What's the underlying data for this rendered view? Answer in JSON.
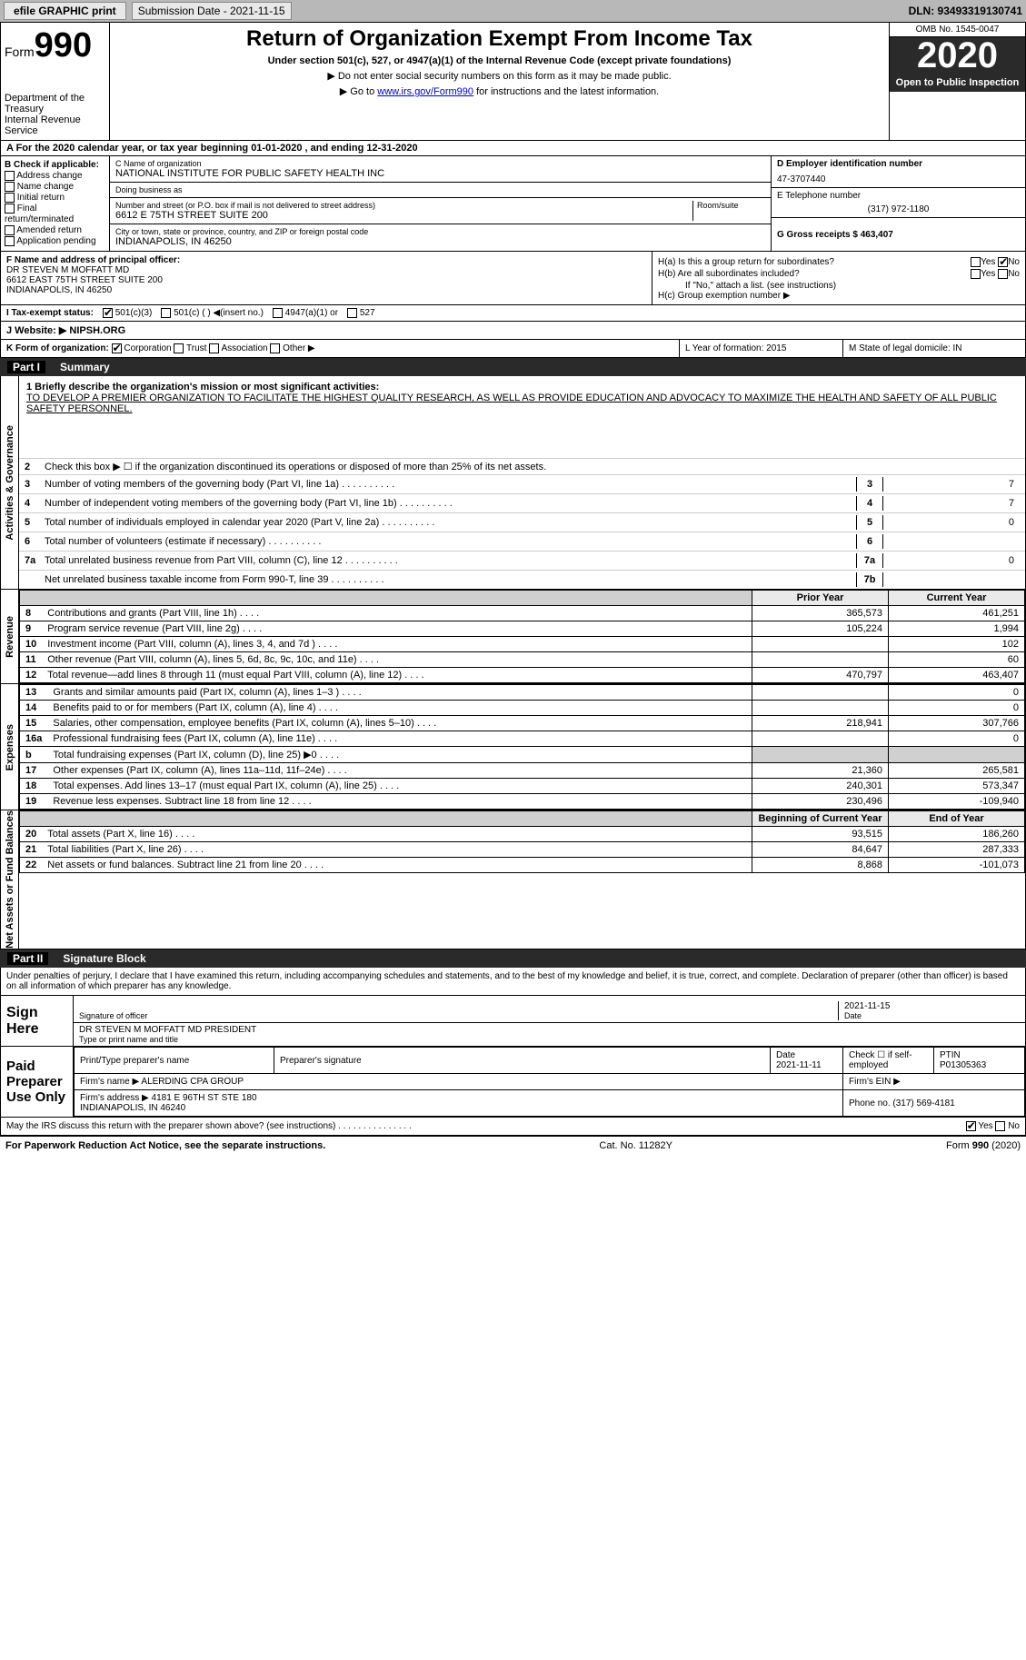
{
  "top": {
    "efile": "efile GRAPHIC print",
    "submission_label": "Submission Date - 2021-11-15",
    "dln": "DLN: 93493319130741"
  },
  "header": {
    "form": "Form",
    "form_num": "990",
    "dept": "Department of the Treasury\nInternal Revenue Service",
    "title": "Return of Organization Exempt From Income Tax",
    "subtitle": "Under section 501(c), 527, or 4947(a)(1) of the Internal Revenue Code (except private foundations)",
    "note1": "▶ Do not enter social security numbers on this form as it may be made public.",
    "note2_pre": "▶ Go to ",
    "note2_link": "www.irs.gov/Form990",
    "note2_post": " for instructions and the latest information.",
    "omb": "OMB No. 1545-0047",
    "year": "2020",
    "open": "Open to Public Inspection"
  },
  "row_a": "A For the 2020 calendar year, or tax year beginning 01-01-2020    , and ending 12-31-2020",
  "b": {
    "title": "B Check if applicable:",
    "items": [
      "Address change",
      "Name change",
      "Initial return",
      "Final return/terminated",
      "Amended return",
      "Application pending"
    ]
  },
  "c": {
    "name_label": "C Name of organization",
    "name": "NATIONAL INSTITUTE FOR PUBLIC SAFETY HEALTH INC",
    "dba_label": "Doing business as",
    "dba": "",
    "addr_label": "Number and street (or P.O. box if mail is not delivered to street address)",
    "room_label": "Room/suite",
    "addr": "6612 E 75TH STREET SUITE 200",
    "city_label": "City or town, state or province, country, and ZIP or foreign postal code",
    "city": "INDIANAPOLIS, IN  46250"
  },
  "d": {
    "ein_label": "D Employer identification number",
    "ein": "47-3707440",
    "phone_label": "E Telephone number",
    "phone": "(317) 972-1180",
    "gross_label": "G Gross receipts $ 463,407"
  },
  "f": {
    "label": "F  Name and address of principal officer:",
    "name": "DR STEVEN M MOFFATT MD",
    "addr": "6612 EAST 75TH STREET SUITE 200\nINDIANAPOLIS, IN  46250"
  },
  "h": {
    "ha": "H(a)  Is this a group return for subordinates?",
    "hb": "H(b)  Are all subordinates included?",
    "hb_note": "If \"No,\" attach a list. (see instructions)",
    "hc": "H(c)  Group exemption number ▶"
  },
  "i": {
    "label": "I    Tax-exempt status:",
    "c3": "501(c)(3)",
    "c": "501(c) (  ) ◀(insert no.)",
    "a1": "4947(a)(1) or",
    "s527": "527"
  },
  "j": {
    "label": "J   Website: ▶",
    "val": "NIPSH.ORG"
  },
  "k": {
    "label": "K Form of organization:",
    "corp": "Corporation",
    "trust": "Trust",
    "assoc": "Association",
    "other": "Other ▶",
    "l": "L Year of formation: 2015",
    "m": "M State of legal domicile: IN"
  },
  "part1": {
    "title": "Part I",
    "name": "Summary",
    "mission_label": "1  Briefly describe the organization's mission or most significant activities:",
    "mission": "TO DEVELOP A PREMIER ORGANIZATION TO FACILITATE THE HIGHEST QUALITY RESEARCH, AS WELL AS PROVIDE EDUCATION AND ADVOCACY TO MAXIMIZE THE HEALTH AND SAFETY OF ALL PUBLIC SAFETY PERSONNEL.",
    "line2": "Check this box ▶ ☐  if the organization discontinued its operations or disposed of more than 25% of its net assets.",
    "gov_lines": [
      {
        "n": "3",
        "t": "Number of voting members of the governing body (Part VI, line 1a)",
        "box": "3",
        "v": "7"
      },
      {
        "n": "4",
        "t": "Number of independent voting members of the governing body (Part VI, line 1b)",
        "box": "4",
        "v": "7"
      },
      {
        "n": "5",
        "t": "Total number of individuals employed in calendar year 2020 (Part V, line 2a)",
        "box": "5",
        "v": "0"
      },
      {
        "n": "6",
        "t": "Total number of volunteers (estimate if necessary)",
        "box": "6",
        "v": ""
      },
      {
        "n": "7a",
        "t": "Total unrelated business revenue from Part VIII, column (C), line 12",
        "box": "7a",
        "v": "0"
      },
      {
        "n": "",
        "t": "Net unrelated business taxable income from Form 990-T, line 39",
        "box": "7b",
        "v": ""
      }
    ],
    "col_prior": "Prior Year",
    "col_current": "Current Year",
    "revenue": [
      {
        "n": "8",
        "t": "Contributions and grants (Part VIII, line 1h)",
        "p": "365,573",
        "c": "461,251"
      },
      {
        "n": "9",
        "t": "Program service revenue (Part VIII, line 2g)",
        "p": "105,224",
        "c": "1,994"
      },
      {
        "n": "10",
        "t": "Investment income (Part VIII, column (A), lines 3, 4, and 7d )",
        "p": "",
        "c": "102"
      },
      {
        "n": "11",
        "t": "Other revenue (Part VIII, column (A), lines 5, 6d, 8c, 9c, 10c, and 11e)",
        "p": "",
        "c": "60"
      },
      {
        "n": "12",
        "t": "Total revenue—add lines 8 through 11 (must equal Part VIII, column (A), line 12)",
        "p": "470,797",
        "c": "463,407"
      }
    ],
    "expenses": [
      {
        "n": "13",
        "t": "Grants and similar amounts paid (Part IX, column (A), lines 1–3 )",
        "p": "",
        "c": "0"
      },
      {
        "n": "14",
        "t": "Benefits paid to or for members (Part IX, column (A), line 4)",
        "p": "",
        "c": "0"
      },
      {
        "n": "15",
        "t": "Salaries, other compensation, employee benefits (Part IX, column (A), lines 5–10)",
        "p": "218,941",
        "c": "307,766"
      },
      {
        "n": "16a",
        "t": "Professional fundraising fees (Part IX, column (A), line 11e)",
        "p": "",
        "c": "0"
      },
      {
        "n": "b",
        "t": "Total fundraising expenses (Part IX, column (D), line 25) ▶0",
        "p": "GREY",
        "c": "GREY"
      },
      {
        "n": "17",
        "t": "Other expenses (Part IX, column (A), lines 11a–11d, 11f–24e)",
        "p": "21,360",
        "c": "265,581"
      },
      {
        "n": "18",
        "t": "Total expenses. Add lines 13–17 (must equal Part IX, column (A), line 25)",
        "p": "240,301",
        "c": "573,347"
      },
      {
        "n": "19",
        "t": "Revenue less expenses. Subtract line 18 from line 12",
        "p": "230,496",
        "c": "-109,940"
      }
    ],
    "col_begin": "Beginning of Current Year",
    "col_end": "End of Year",
    "net": [
      {
        "n": "20",
        "t": "Total assets (Part X, line 16)",
        "p": "93,515",
        "c": "186,260"
      },
      {
        "n": "21",
        "t": "Total liabilities (Part X, line 26)",
        "p": "84,647",
        "c": "287,333"
      },
      {
        "n": "22",
        "t": "Net assets or fund balances. Subtract line 21 from line 20",
        "p": "8,868",
        "c": "-101,073"
      }
    ],
    "vtab_gov": "Activities & Governance",
    "vtab_rev": "Revenue",
    "vtab_exp": "Expenses",
    "vtab_net": "Net Assets or Fund Balances"
  },
  "part2": {
    "title": "Part II",
    "name": "Signature Block",
    "decl": "Under penalties of perjury, I declare that I have examined this return, including accompanying schedules and statements, and to the best of my knowledge and belief, it is true, correct, and complete. Declaration of preparer (other than officer) is based on all information of which preparer has any knowledge.",
    "sign_here": "Sign Here",
    "sig_officer": "Signature of officer",
    "sig_date": "2021-11-15",
    "date_lbl": "Date",
    "officer_name": "DR STEVEN M MOFFATT MD  PRESIDENT",
    "officer_lbl": "Type or print name and title",
    "paid": "Paid Preparer Use Only",
    "prep_name_lbl": "Print/Type preparer's name",
    "prep_sig_lbl": "Preparer's signature",
    "prep_date": "2021-11-11",
    "self_emp": "Check ☐ if self-employed",
    "ptin_lbl": "PTIN",
    "ptin": "P01305363",
    "firm_name_lbl": "Firm's name    ▶",
    "firm_name": "ALERDING CPA GROUP",
    "firm_ein_lbl": "Firm's EIN ▶",
    "firm_addr_lbl": "Firm's address ▶",
    "firm_addr": "4181 E 96TH ST STE 180\nINDIANAPOLIS, IN  46240",
    "firm_phone_lbl": "Phone no.",
    "firm_phone": "(317) 569-4181",
    "may_irs": "May the IRS discuss this return with the preparer shown above? (see instructions)",
    "yes": "Yes",
    "no": "No"
  },
  "footer": {
    "pra": "For Paperwork Reduction Act Notice, see the separate instructions.",
    "cat": "Cat. No. 11282Y",
    "form": "Form 990 (2020)"
  }
}
